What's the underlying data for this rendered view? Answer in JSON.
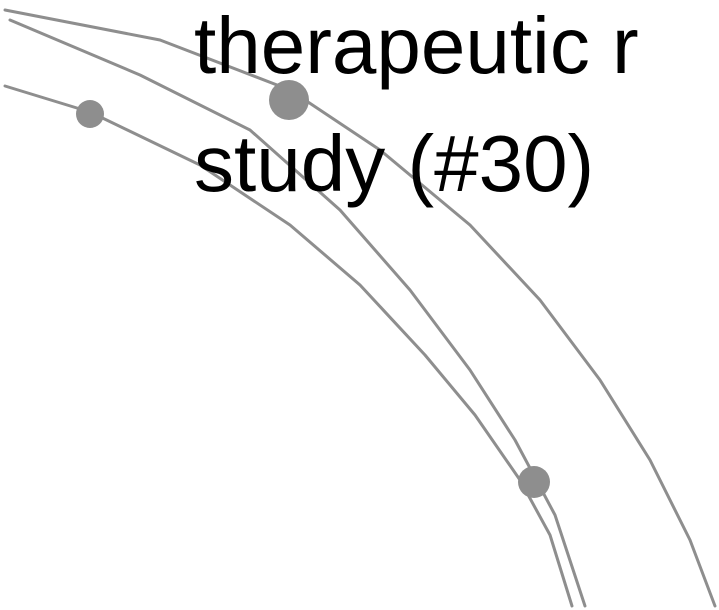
{
  "diagram": {
    "title_lines": [
      "therapeutic r",
      "study (#30)"
    ],
    "colors": {
      "background": "#ffffff",
      "line": "#8e8e8e",
      "node": "#8e8e8e",
      "text": "#000000"
    }
  }
}
